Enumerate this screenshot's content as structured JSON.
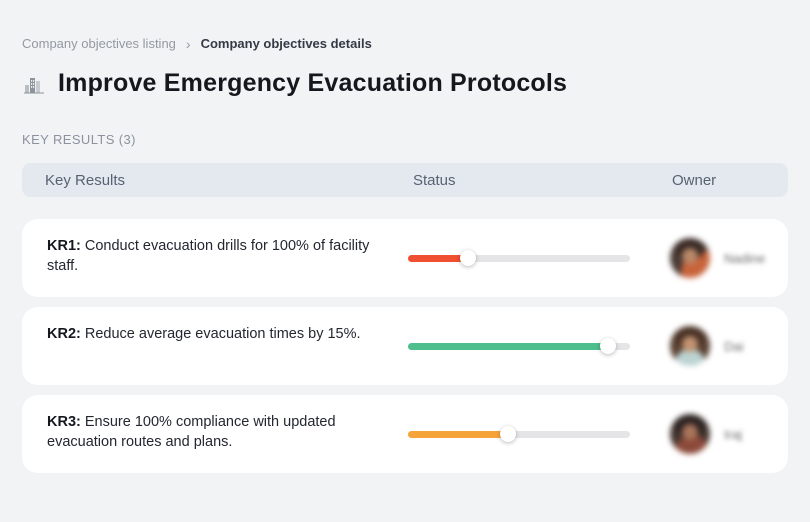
{
  "breadcrumb": {
    "separator": "›",
    "items": [
      {
        "label": "Company objectives listing",
        "active": false
      },
      {
        "label": "Company objectives details",
        "active": true
      }
    ]
  },
  "header": {
    "title": "Improve Emergency Evacuation Protocols",
    "title_icon": "city-buildings-icon",
    "section_label": "KEY RESULTS (3)"
  },
  "table": {
    "columns": {
      "key_results": "Key Results",
      "status": "Status",
      "owner": "Owner"
    }
  },
  "rows": [
    {
      "kr_label": "KR1:",
      "kr_text": "Conduct evacuation drills for 100% of facility staff.",
      "progress_pct": 27,
      "progress_color": "#F04F31",
      "owner_name": "Nadine"
    },
    {
      "kr_label": "KR2:",
      "kr_text": "Reduce average evacuation times by 15%.",
      "progress_pct": 90,
      "progress_color": "#4DBE8C",
      "owner_name": "Dai"
    },
    {
      "kr_label": "KR3:",
      "kr_text": "Ensure 100% compliance with updated evacuation routes and plans.",
      "progress_pct": 45,
      "progress_color": "#F6A339",
      "owner_name": "Iraj"
    }
  ],
  "colors": {
    "page_background": "#F2F3F5",
    "card_background": "#FFFFFF",
    "table_header_background": "#E4E8EF",
    "progress_track": "#E5E5E8",
    "progress_red": "#F04F31",
    "progress_green": "#4DBE8C",
    "progress_orange": "#F6A339"
  }
}
